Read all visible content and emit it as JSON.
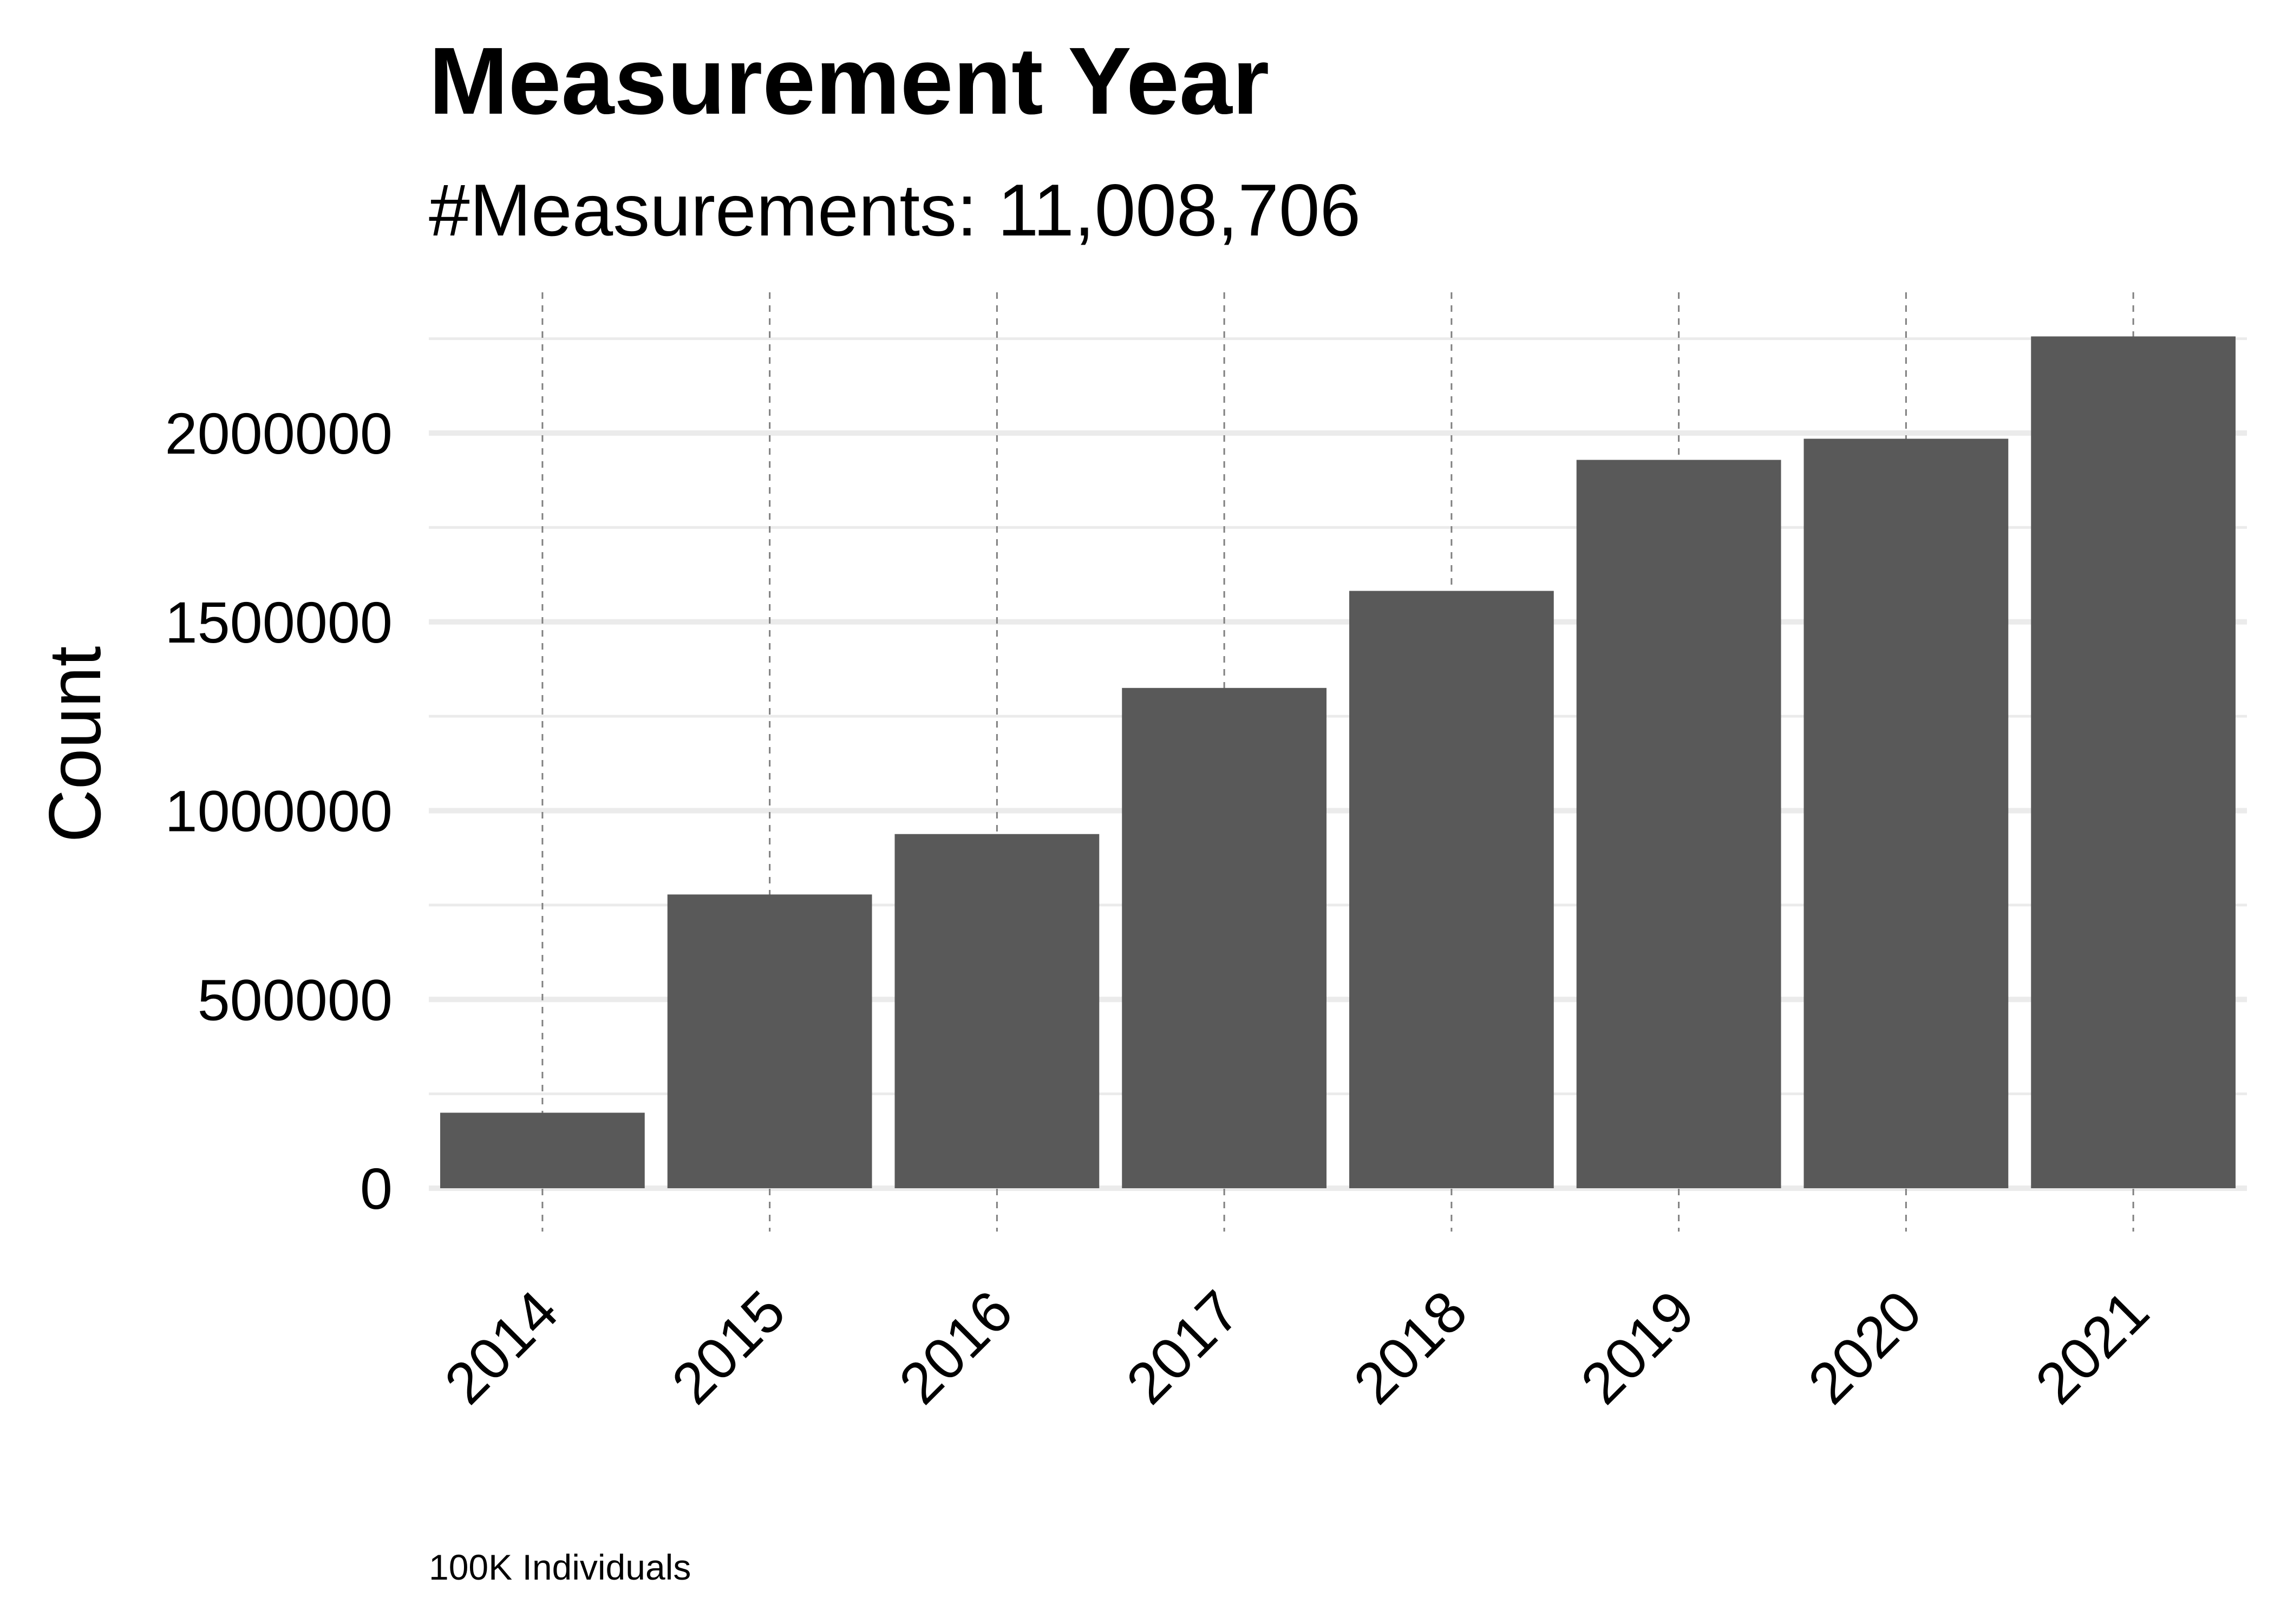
{
  "chart_data": {
    "type": "bar",
    "title": "Measurement Year",
    "subtitle": "#Measurements: 11,008,706",
    "xlabel": "",
    "ylabel": "Count",
    "caption": "100K Individuals",
    "categories": [
      "2014",
      "2015",
      "2016",
      "2017",
      "2018",
      "2019",
      "2020",
      "2021"
    ],
    "values": [
      200000,
      778000,
      938000,
      1325000,
      1582000,
      1929000,
      1985000,
      2256000
    ],
    "ylim": [
      -100000,
      2350000
    ],
    "yticks": [
      0,
      500000,
      1000000,
      1500000,
      2000000
    ],
    "ytick_labels": [
      "0",
      "500000",
      "1000000",
      "1500000",
      "2000000"
    ],
    "grid": true,
    "x_gridlines": "dashed",
    "bar_color": "#595959",
    "gridline_color": "#ebebeb",
    "x_gridline_color": "#808080"
  }
}
